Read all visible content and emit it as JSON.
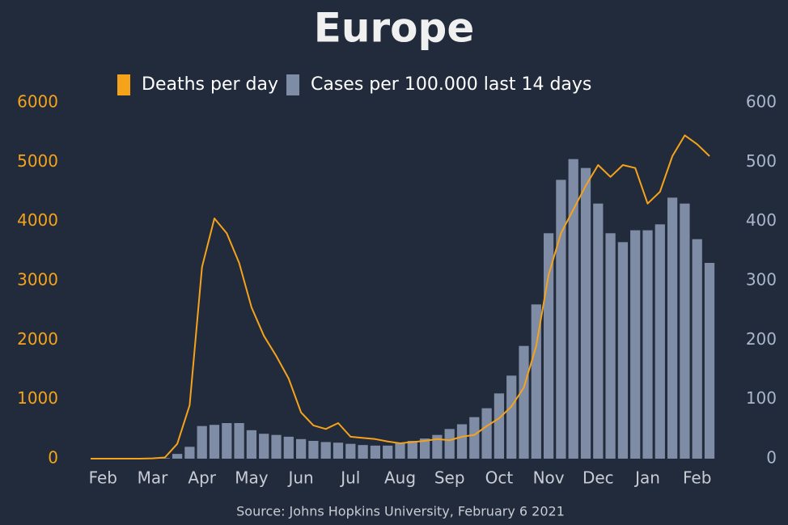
{
  "chart_data": {
    "type": "combo",
    "title": "Europe",
    "source": "Source: Johns Hopkins University, February 6 2021",
    "categories": [
      null,
      "Feb",
      null,
      null,
      null,
      "Mar",
      null,
      null,
      null,
      "Apr",
      null,
      null,
      null,
      "May",
      null,
      null,
      null,
      "Jun",
      null,
      null,
      null,
      "Jul",
      null,
      null,
      null,
      "Aug",
      null,
      null,
      null,
      "Sep",
      null,
      null,
      null,
      "Oct",
      null,
      null,
      null,
      "Nov",
      null,
      null,
      null,
      "Dec",
      null,
      null,
      null,
      "Jan",
      null,
      null,
      null,
      "Feb",
      null
    ],
    "series": [
      {
        "name": "Deaths per day",
        "type": "line",
        "color": "#f5a31a",
        "axis": "y",
        "values": [
          0,
          0,
          0,
          0,
          0,
          5,
          20,
          250,
          900,
          3230,
          4050,
          3800,
          3300,
          2550,
          2070,
          1730,
          1350,
          780,
          560,
          500,
          600,
          370,
          350,
          330,
          290,
          260,
          280,
          300,
          330,
          310,
          370,
          400,
          550,
          680,
          880,
          1200,
          1900,
          3100,
          3800,
          4200,
          4600,
          4950,
          4750,
          4950,
          4900,
          4300,
          4500,
          5100,
          5450,
          5300,
          5100
        ]
      },
      {
        "name": "Cases per 100.000 last 14 days",
        "type": "bar",
        "color": "#7f8ca6",
        "axis": "y2",
        "values": [
          0,
          0,
          0,
          0,
          0,
          0,
          1,
          8,
          20,
          55,
          57,
          60,
          60,
          48,
          42,
          40,
          37,
          33,
          30,
          28,
          27,
          25,
          23,
          22,
          22,
          26,
          30,
          34,
          40,
          50,
          58,
          70,
          85,
          110,
          140,
          190,
          260,
          380,
          470,
          505,
          490,
          430,
          380,
          365,
          385,
          385,
          395,
          440,
          430,
          370,
          330
        ]
      }
    ],
    "ylim": [
      0,
      6000
    ],
    "yticks": [
      0,
      1000,
      2000,
      3000,
      4000,
      5000,
      6000
    ],
    "y2lim": [
      0,
      600
    ],
    "y2ticks": [
      0,
      100,
      200,
      300,
      400,
      500,
      600
    ]
  }
}
